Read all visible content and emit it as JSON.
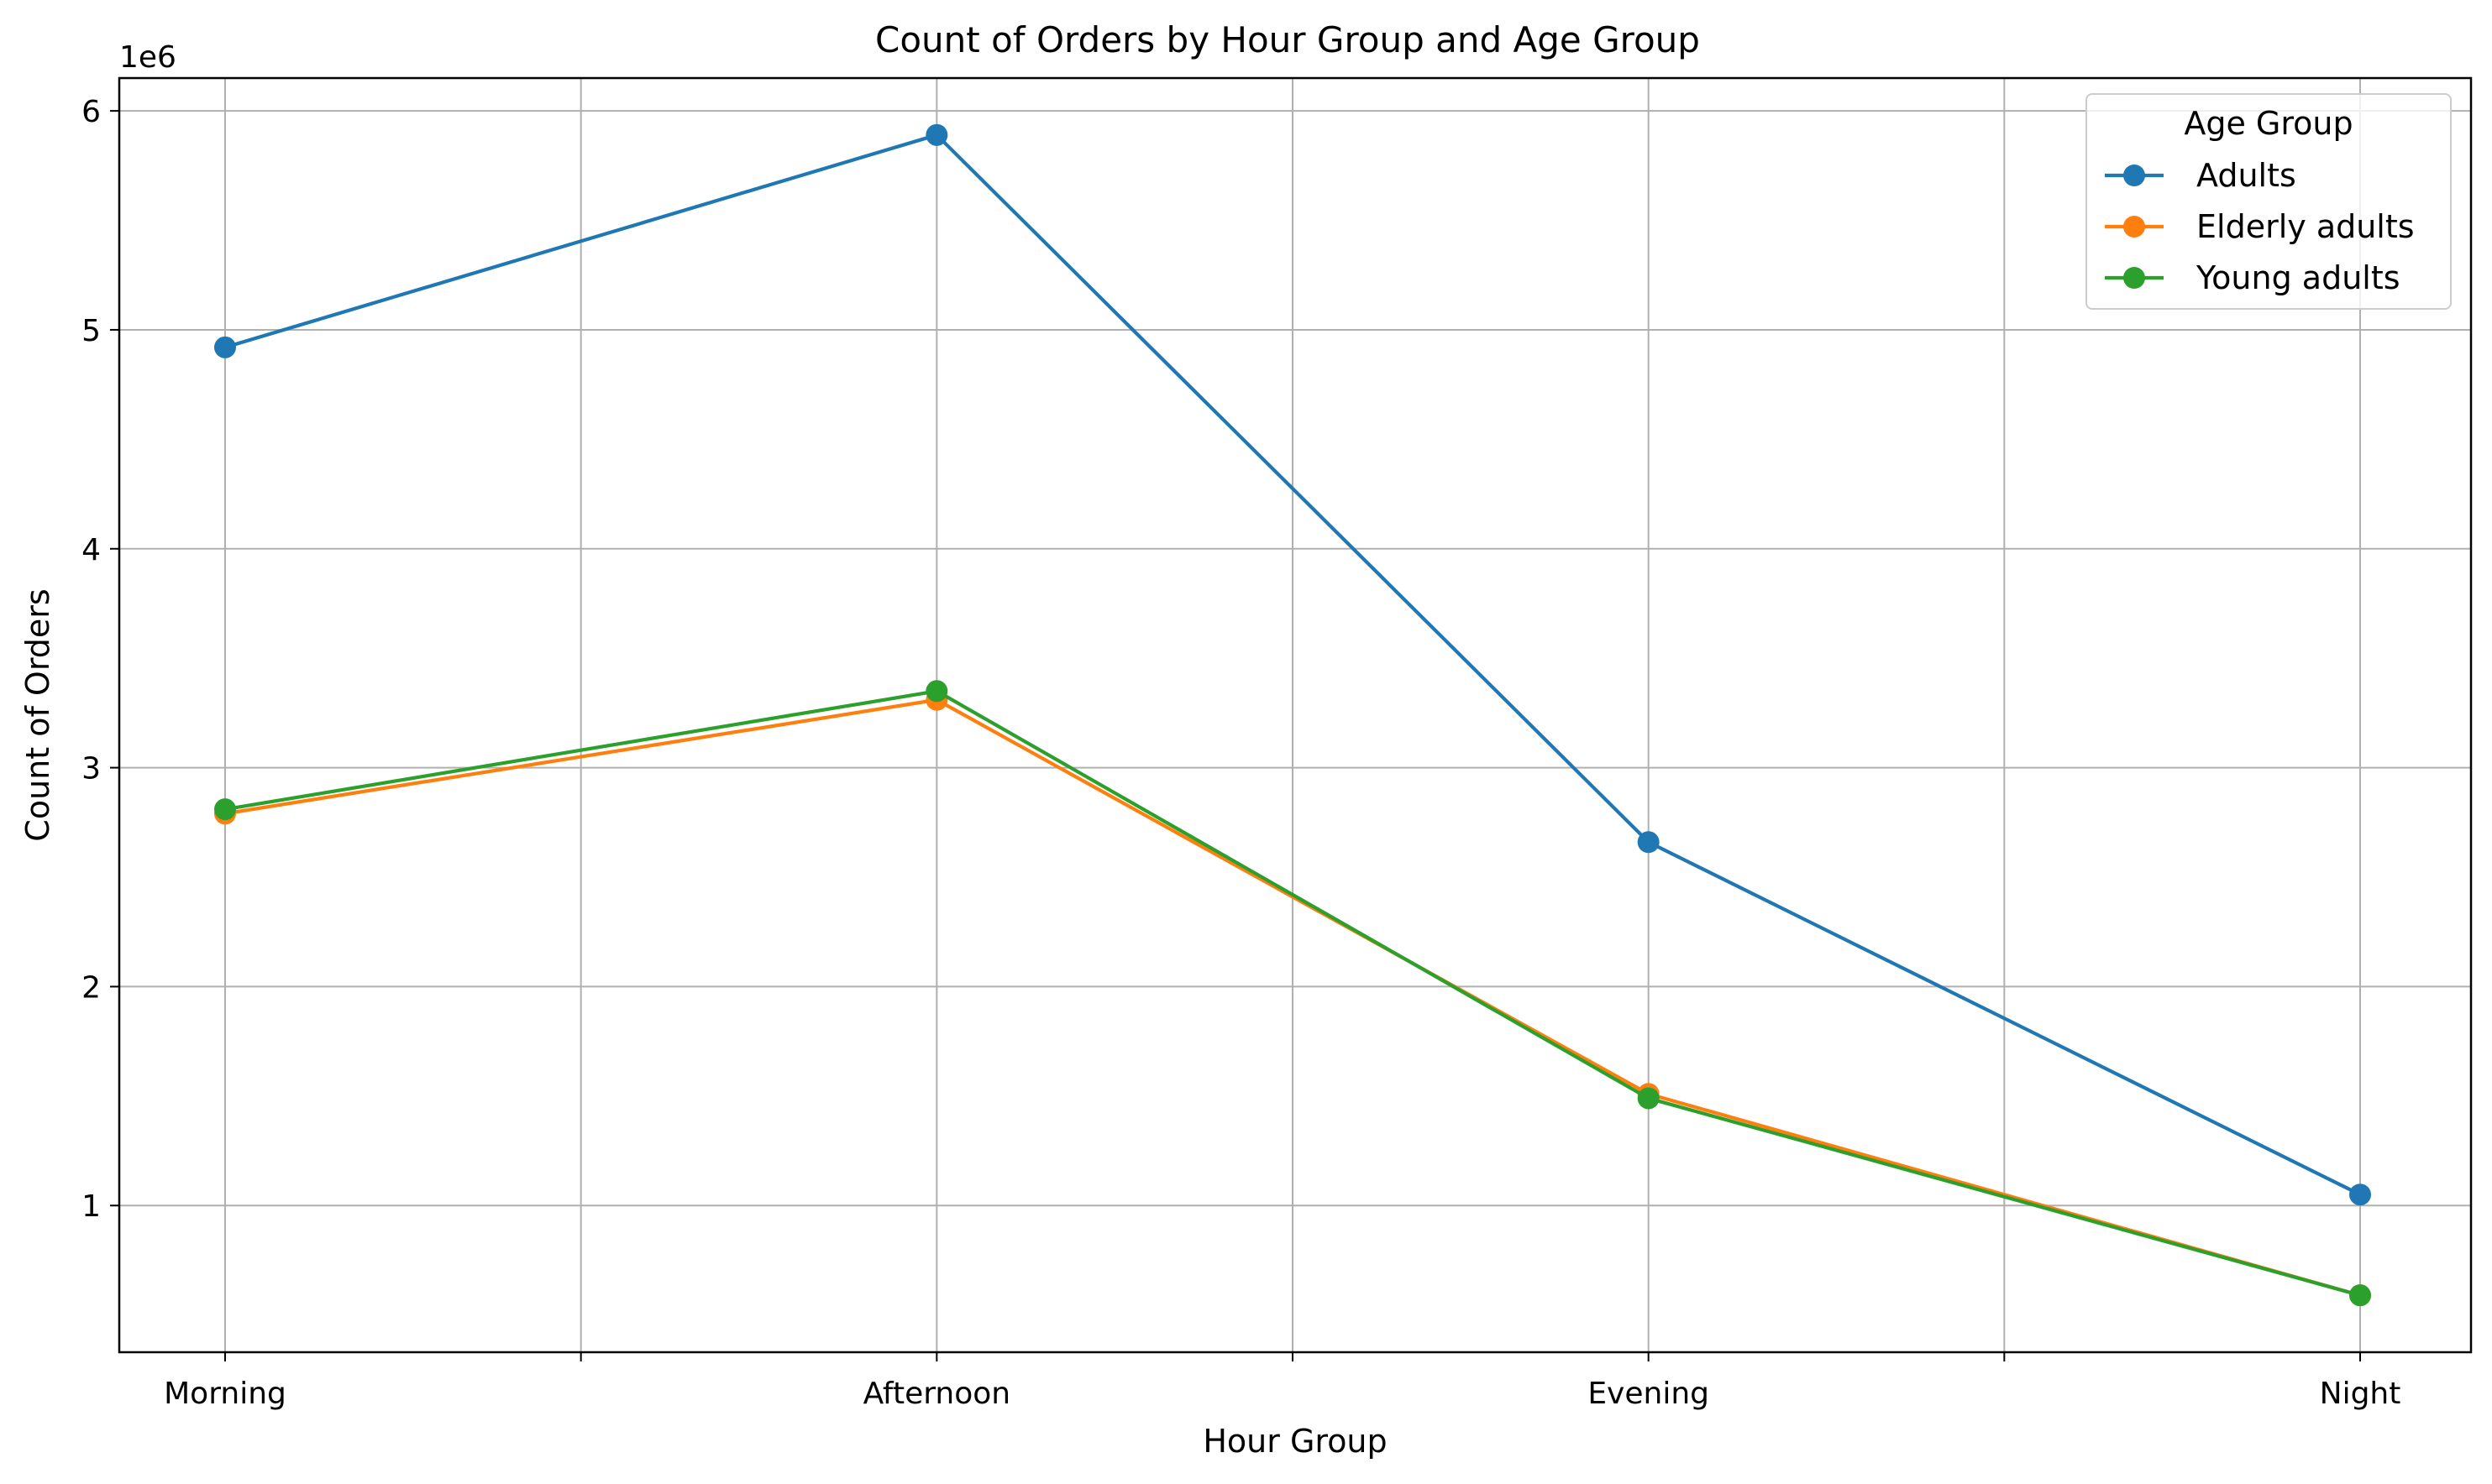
{
  "chart_data": {
    "type": "line",
    "title": "Count of Orders by Hour Group and Age Group",
    "xlabel": "Hour Group",
    "ylabel": "Count of Orders",
    "y_offset_label": "1e6",
    "categories": [
      "Morning",
      "Afternoon",
      "Evening",
      "Night"
    ],
    "yticks": [
      1,
      2,
      3,
      4,
      5,
      6
    ],
    "ylim": [
      0.33,
      6.15
    ],
    "y_scale_note": "values in millions (1e6)",
    "grid": true,
    "legend": {
      "title": "Age Group",
      "placement": "top-right"
    },
    "series": [
      {
        "name": "Adults",
        "color": "#1f77b4",
        "values": [
          4.92,
          5.89,
          2.66,
          1.05
        ]
      },
      {
        "name": "Elderly adults",
        "color": "#ff7f0e",
        "values": [
          2.79,
          3.31,
          1.51,
          0.59
        ]
      },
      {
        "name": "Young adults",
        "color": "#2ca02c",
        "values": [
          2.81,
          3.35,
          1.49,
          0.59
        ]
      }
    ]
  }
}
